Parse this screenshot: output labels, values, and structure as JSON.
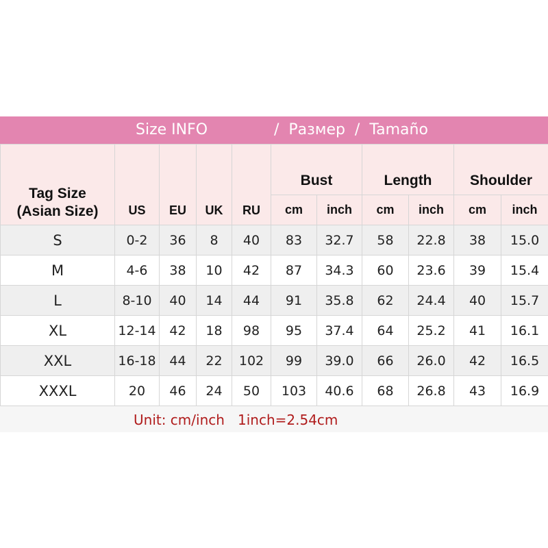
{
  "title": {
    "part1": "Size INFO",
    "part2": "/  Размер  /  Tamaño"
  },
  "header": {
    "tag_size_line1": "Tag Size",
    "tag_size_line2": "(Asian Size)",
    "columns": [
      "US",
      "EU",
      "UK",
      "RU"
    ],
    "groups": [
      "Bust",
      "Length",
      "Shoulder"
    ],
    "units": [
      "cm",
      "inch",
      "cm",
      "inch",
      "cm",
      "inch"
    ]
  },
  "rows": [
    [
      "S",
      "0-2",
      "36",
      "8",
      "40",
      "83",
      "32.7",
      "58",
      "22.8",
      "38",
      "15.0"
    ],
    [
      "M",
      "4-6",
      "38",
      "10",
      "42",
      "87",
      "34.3",
      "60",
      "23.6",
      "39",
      "15.4"
    ],
    [
      "L",
      "8-10",
      "40",
      "14",
      "44",
      "91",
      "35.8",
      "62",
      "24.4",
      "40",
      "15.7"
    ],
    [
      "XL",
      "12-14",
      "42",
      "18",
      "98",
      "95",
      "37.4",
      "64",
      "25.2",
      "41",
      "16.1"
    ],
    [
      "XXL",
      "16-18",
      "44",
      "22",
      "102",
      "99",
      "39.0",
      "66",
      "26.0",
      "42",
      "16.5"
    ],
    [
      "XXXL",
      "20",
      "46",
      "24",
      "50",
      "103",
      "40.6",
      "68",
      "26.8",
      "43",
      "16.9"
    ]
  ],
  "footer": "Unit: cm/inch   1inch=2.54cm",
  "colors": {
    "title_bar": "#e385b0",
    "header_bg": "#fbe9e9",
    "footer_text": "#b01c1c"
  }
}
